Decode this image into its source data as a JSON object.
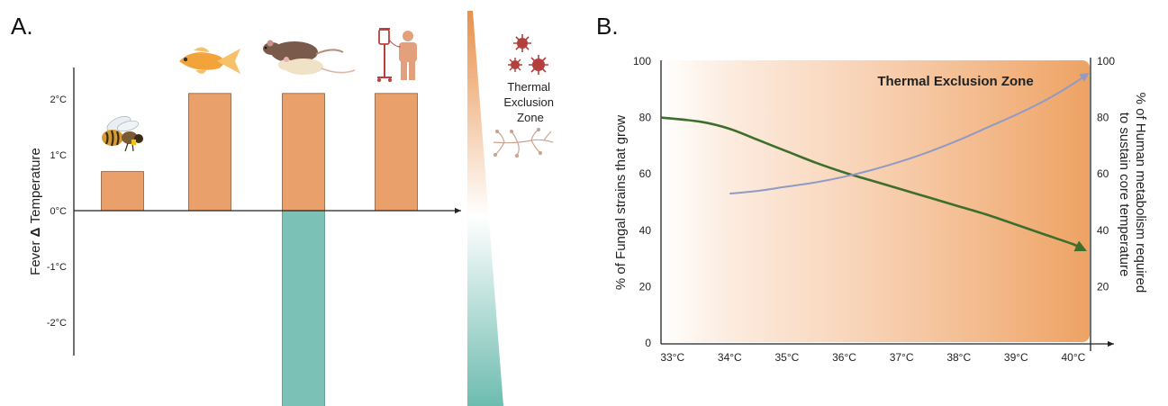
{
  "panel_a": {
    "letter": "A.",
    "zone_label_lines": [
      "Thermal",
      "Exclusion",
      "Zone"
    ],
    "bar_color": "#e9a06a",
    "negative_bar_color": "#7cc1b6",
    "icons": [
      "bee-icon",
      "goldfish-icon",
      "rodents-icon",
      "patient-iv-icon",
      "virus-cluster-icon",
      "fungal-hyphae-icon"
    ]
  },
  "panel_b": {
    "letter": "B.",
    "zone_title": "Thermal Exclusion Zone",
    "zone_color": "#f0a060",
    "fungal_color": "#3c6e2c",
    "metabolism_color": "#8f9bc4"
  },
  "chart_data": [
    {
      "type": "bar",
      "categories": [
        "",
        "",
        "",
        ""
      ],
      "values": [
        0.7,
        2.1,
        2.1,
        2.1
      ],
      "negative_bar": {
        "value": -3.6
      },
      "ylabel_prefix": "Fever",
      "ylabel_delta": "Δ",
      "ylabel_suffix": "Temperature",
      "ytick_labels": [
        "2°C",
        "1°C",
        "0°C",
        "-1°C",
        "-2°C"
      ],
      "ytick_values": [
        2,
        1,
        0,
        -1,
        -2
      ],
      "ylim": [
        -2.6,
        2.55
      ],
      "grid": false
    },
    {
      "type": "line",
      "x": [
        "33°C",
        "34°C",
        "35°C",
        "36°C",
        "37°C",
        "38°C",
        "39°C",
        "40°C"
      ],
      "xlim": [
        32.8,
        40.3
      ],
      "y_left": {
        "label": "% of Fungal strains that grow",
        "ticks": [
          0,
          20,
          40,
          60,
          80,
          100
        ],
        "range": [
          0,
          100
        ]
      },
      "y_right": {
        "label_lines": [
          "% of Human metabolism required",
          "to sustain core temperature"
        ],
        "ticks": [
          20,
          40,
          60,
          80,
          100
        ],
        "range": [
          0,
          100
        ]
      },
      "series": [
        {
          "axis": "left",
          "x": [
            32.8,
            33.5,
            34.0,
            34.5,
            35.0,
            35.5,
            36.0,
            36.5,
            37.0,
            37.5,
            38.0,
            38.5,
            39.0,
            39.5,
            40.0,
            40.2
          ],
          "y": [
            80,
            78.5,
            76,
            72,
            68,
            64,
            60.5,
            57.5,
            54.5,
            51.5,
            48.5,
            45.5,
            42,
            38.5,
            35,
            33
          ]
        },
        {
          "axis": "right",
          "x": [
            34.0,
            34.5,
            35.0,
            35.5,
            36.0,
            36.5,
            37.0,
            37.5,
            38.0,
            38.5,
            39.0,
            39.5,
            40.0,
            40.25
          ],
          "y": [
            53,
            54,
            55.5,
            57,
            59,
            61.5,
            64.5,
            68,
            72,
            76.5,
            81,
            86,
            92,
            95.5
          ]
        }
      ],
      "grid": false
    }
  ]
}
